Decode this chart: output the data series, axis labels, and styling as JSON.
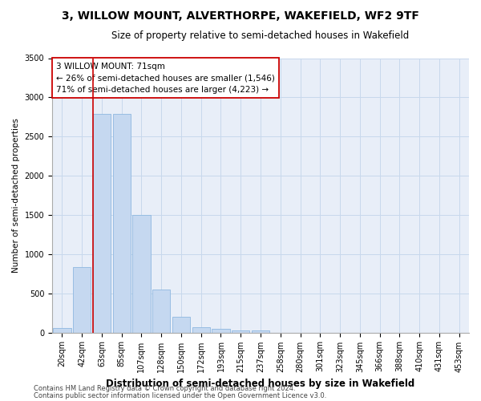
{
  "title": "3, WILLOW MOUNT, ALVERTHORPE, WAKEFIELD, WF2 9TF",
  "subtitle": "Size of property relative to semi-detached houses in Wakefield",
  "xlabel": "Distribution of semi-detached houses by size in Wakefield",
  "ylabel": "Number of semi-detached properties",
  "footnote1": "Contains HM Land Registry data © Crown copyright and database right 2024.",
  "footnote2": "Contains public sector information licensed under the Open Government Licence v3.0.",
  "bar_categories": [
    "20sqm",
    "42sqm",
    "63sqm",
    "85sqm",
    "107sqm",
    "128sqm",
    "150sqm",
    "172sqm",
    "193sqm",
    "215sqm",
    "237sqm",
    "258sqm",
    "280sqm",
    "301sqm",
    "323sqm",
    "345sqm",
    "366sqm",
    "388sqm",
    "410sqm",
    "431sqm",
    "453sqm"
  ],
  "bar_values": [
    60,
    830,
    2790,
    2790,
    1500,
    550,
    200,
    65,
    45,
    30,
    25,
    0,
    0,
    0,
    0,
    0,
    0,
    0,
    0,
    0,
    0
  ],
  "bar_color": "#c5d8f0",
  "bar_edge_color": "#8fb8e0",
  "property_label": "3 WILLOW MOUNT: 71sqm",
  "pct_smaller": 26,
  "count_smaller": "1,546",
  "pct_larger": 71,
  "count_larger": "4,223",
  "vline_color": "#cc0000",
  "vline_bar_index": 2,
  "ylim": [
    0,
    3500
  ],
  "yticks": [
    0,
    500,
    1000,
    1500,
    2000,
    2500,
    3000,
    3500
  ],
  "grid_color": "#c8d8ec",
  "bg_color": "#e8eef8",
  "title_fontsize": 10,
  "subtitle_fontsize": 8.5,
  "annotation_fontsize": 7.5,
  "ylabel_fontsize": 7.5,
  "xlabel_fontsize": 8.5,
  "tick_fontsize": 7,
  "footer_fontsize": 6
}
